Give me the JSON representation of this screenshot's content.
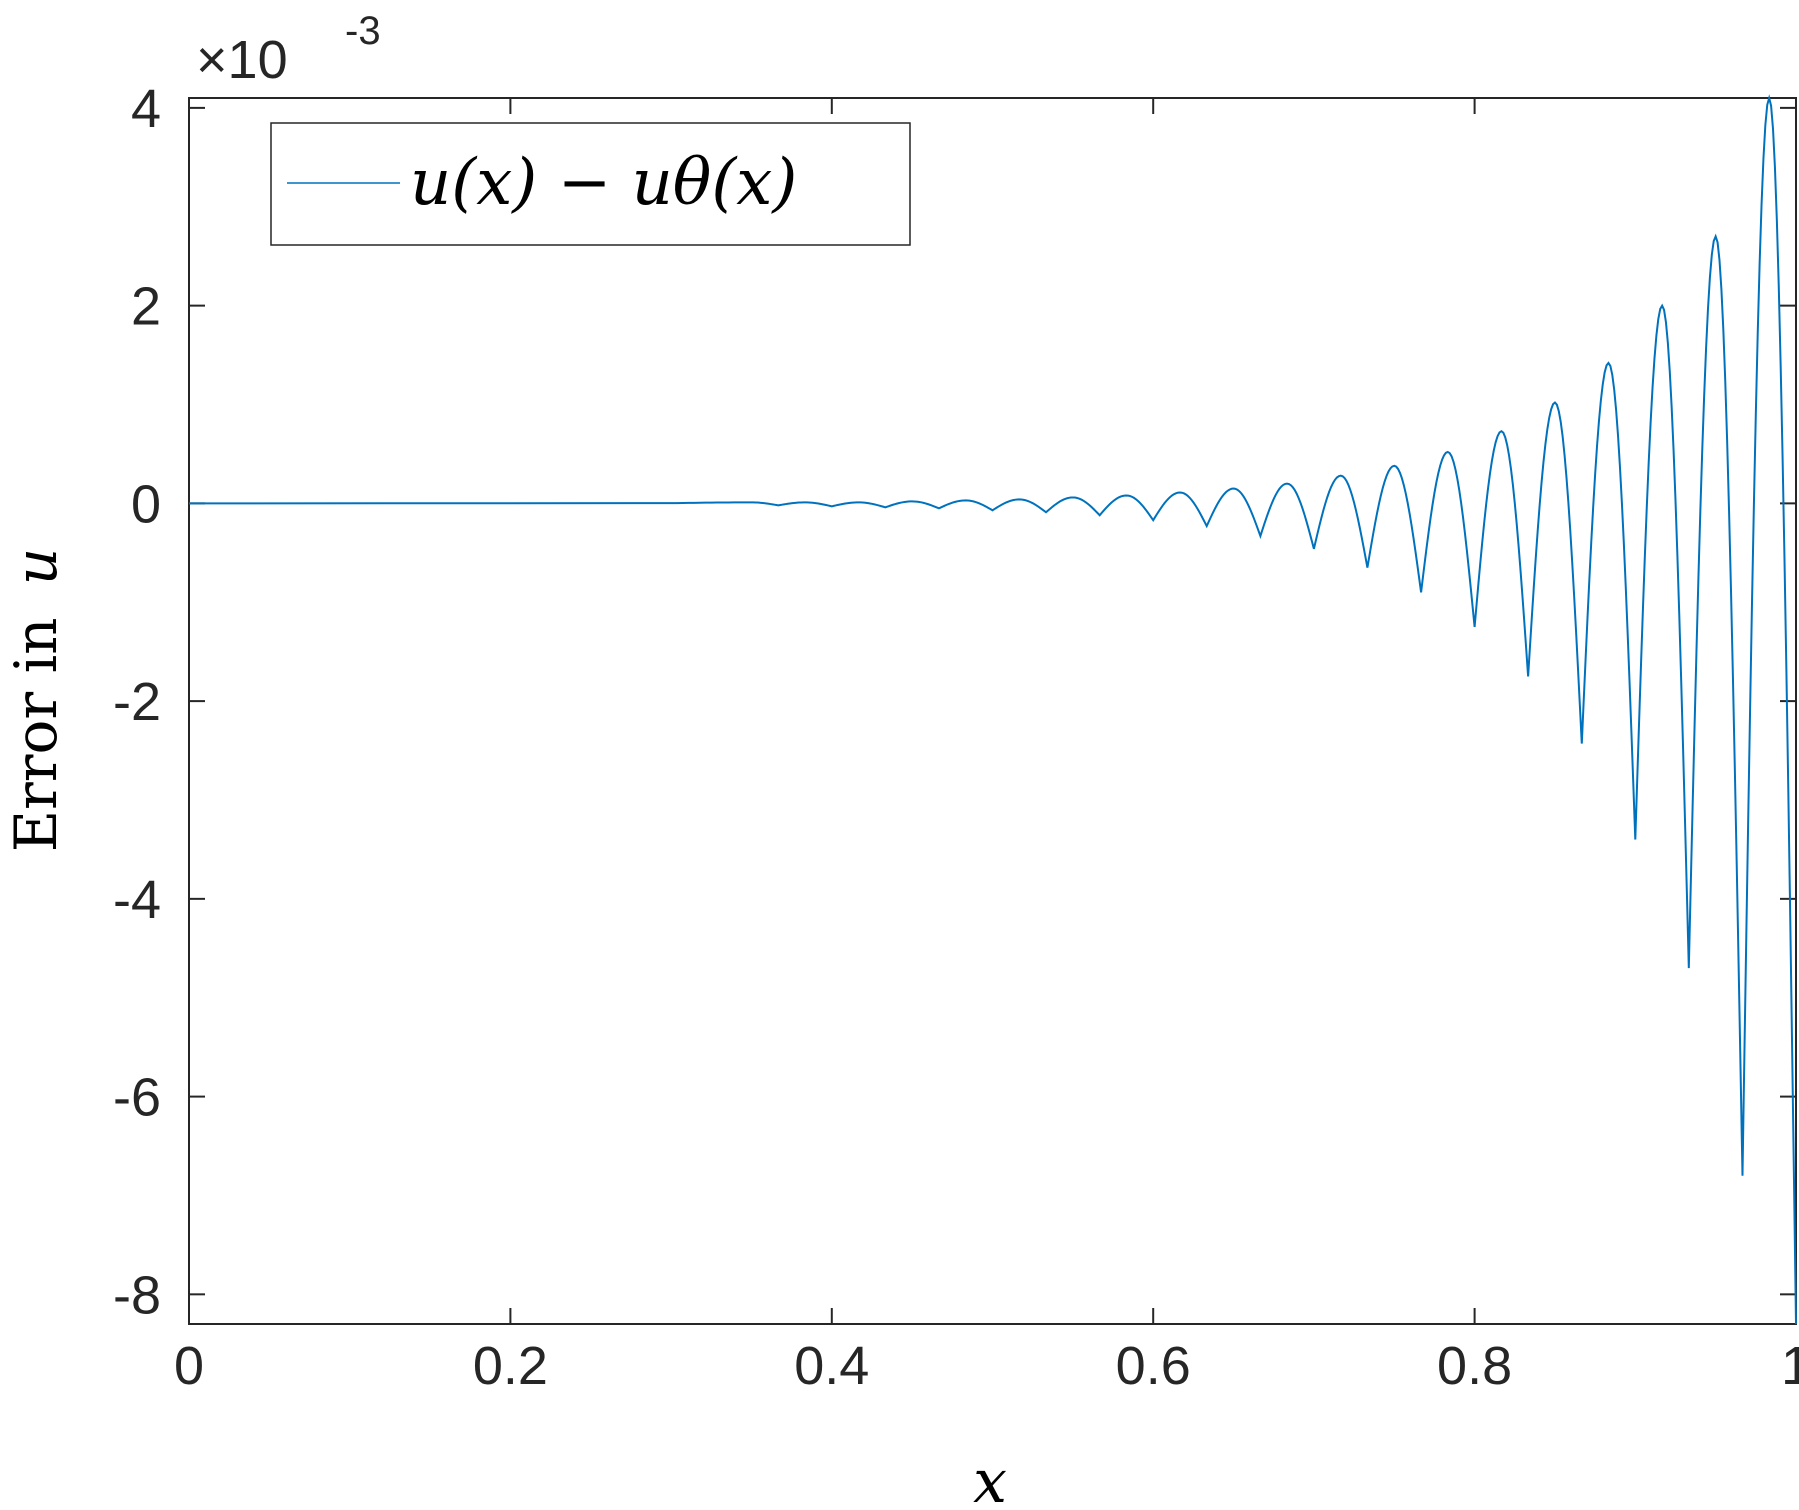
{
  "chart_data": {
    "type": "line",
    "xlabel": "x",
    "ylabel_text": "Error in",
    "ylabel_symbol": "u",
    "xlim": [
      0,
      1
    ],
    "ylim": [
      -8.3,
      4.1
    ],
    "y_exponent_prefix": "×10",
    "y_exponent_power": "-3",
    "x_ticks": [
      {
        "value": 0,
        "label": "0"
      },
      {
        "value": 0.2,
        "label": "0.2"
      },
      {
        "value": 0.4,
        "label": "0.4"
      },
      {
        "value": 0.6,
        "label": "0.6"
      },
      {
        "value": 0.8,
        "label": "0.8"
      },
      {
        "value": 1,
        "label": "1"
      }
    ],
    "y_ticks": [
      {
        "value": 4,
        "label": "4"
      },
      {
        "value": 2,
        "label": "2"
      },
      {
        "value": 0,
        "label": "0"
      },
      {
        "value": -2,
        "label": "-2"
      },
      {
        "value": -4,
        "label": "-4"
      },
      {
        "value": -6,
        "label": "-6"
      },
      {
        "value": -8,
        "label": "-8"
      }
    ],
    "grid": false,
    "legend_position": "top-left",
    "series": [
      {
        "name": "u(x) − uθ(x)",
        "color": "#0072BD",
        "cusp_x": [
          0.3667,
          0.4,
          0.4333,
          0.4667,
          0.5,
          0.5333,
          0.5667,
          0.6,
          0.6333,
          0.6667,
          0.7,
          0.7333,
          0.7667,
          0.8,
          0.8333,
          0.8667,
          0.9,
          0.9333,
          0.9667,
          1.0
        ],
        "cusp_y": [
          -0.02,
          -0.03,
          -0.04,
          -0.05,
          -0.07,
          -0.09,
          -0.12,
          -0.17,
          -0.23,
          -0.33,
          -0.46,
          -0.65,
          -0.9,
          -1.25,
          -1.75,
          -2.43,
          -3.4,
          -4.7,
          -6.8,
          -8.3
        ],
        "peak_x": [
          0.35,
          0.3833,
          0.4167,
          0.45,
          0.4833,
          0.5167,
          0.55,
          0.5833,
          0.6167,
          0.65,
          0.6833,
          0.7167,
          0.75,
          0.7833,
          0.8167,
          0.85,
          0.8833,
          0.9167,
          0.95,
          0.9833
        ],
        "peak_y": [
          0.01,
          0.01,
          0.01,
          0.02,
          0.03,
          0.04,
          0.06,
          0.08,
          0.11,
          0.15,
          0.2,
          0.28,
          0.38,
          0.52,
          0.73,
          1.02,
          1.42,
          2.0,
          2.7,
          4.1
        ]
      }
    ]
  }
}
